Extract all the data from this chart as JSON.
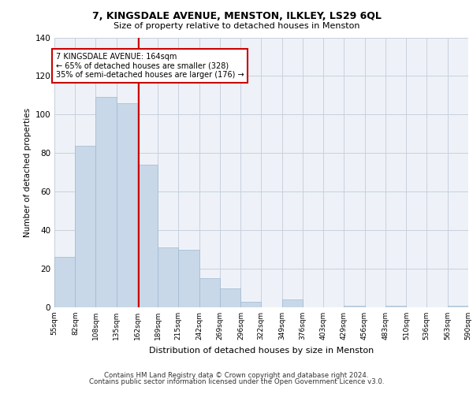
{
  "title1": "7, KINGSDALE AVENUE, MENSTON, ILKLEY, LS29 6QL",
  "title2": "Size of property relative to detached houses in Menston",
  "xlabel": "Distribution of detached houses by size in Menston",
  "ylabel": "Number of detached properties",
  "bar_color": "#c8d8e8",
  "bar_edge_color": "#a0b8d0",
  "grid_color": "#c8d0dc",
  "background_color": "#eef2f8",
  "vline_x": 164,
  "vline_color": "#cc0000",
  "annotation_line1": "7 KINGSDALE AVENUE: 164sqm",
  "annotation_line2": "← 65% of detached houses are smaller (328)",
  "annotation_line3": "35% of semi-detached houses are larger (176) →",
  "annotation_box_color": "#cc0000",
  "bin_edges": [
    55,
    82,
    108,
    135,
    162,
    189,
    215,
    242,
    269,
    296,
    322,
    349,
    376,
    403,
    429,
    456,
    483,
    510,
    536,
    563,
    590
  ],
  "bar_heights": [
    26,
    84,
    109,
    106,
    74,
    31,
    30,
    15,
    10,
    3,
    0,
    4,
    0,
    0,
    1,
    0,
    1,
    0,
    0,
    1
  ],
  "tick_labels": [
    "55sqm",
    "82sqm",
    "108sqm",
    "135sqm",
    "162sqm",
    "189sqm",
    "215sqm",
    "242sqm",
    "269sqm",
    "296sqm",
    "322sqm",
    "349sqm",
    "376sqm",
    "403sqm",
    "429sqm",
    "456sqm",
    "483sqm",
    "510sqm",
    "536sqm",
    "563sqm",
    "590sqm"
  ],
  "ylim": [
    0,
    140
  ],
  "yticks": [
    0,
    20,
    40,
    60,
    80,
    100,
    120,
    140
  ],
  "footer1": "Contains HM Land Registry data © Crown copyright and database right 2024.",
  "footer2": "Contains public sector information licensed under the Open Government Licence v3.0."
}
